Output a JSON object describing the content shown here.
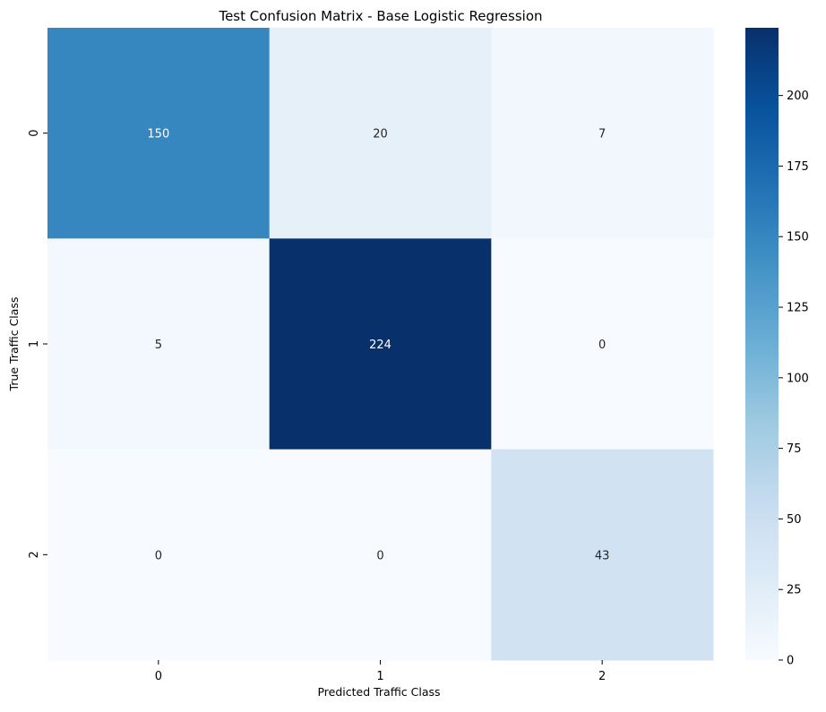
{
  "chart_data": {
    "type": "heatmap",
    "title": "Test Confusion Matrix - Base Logistic Regression",
    "xlabel": "Predicted Traffic Class",
    "ylabel": "True Traffic Class",
    "x_categories": [
      "0",
      "1",
      "2"
    ],
    "y_categories": [
      "0",
      "1",
      "2"
    ],
    "matrix": [
      [
        150,
        20,
        7
      ],
      [
        5,
        224,
        0
      ],
      [
        0,
        0,
        43
      ]
    ],
    "colormap": "Blues",
    "vmin": 0,
    "vmax": 224,
    "colorbar_ticks": [
      "0",
      "25",
      "50",
      "75",
      "100",
      "125",
      "150",
      "175",
      "200"
    ],
    "colorbar_tick_values": [
      0,
      25,
      50,
      75,
      100,
      125,
      150,
      175,
      200
    ]
  }
}
